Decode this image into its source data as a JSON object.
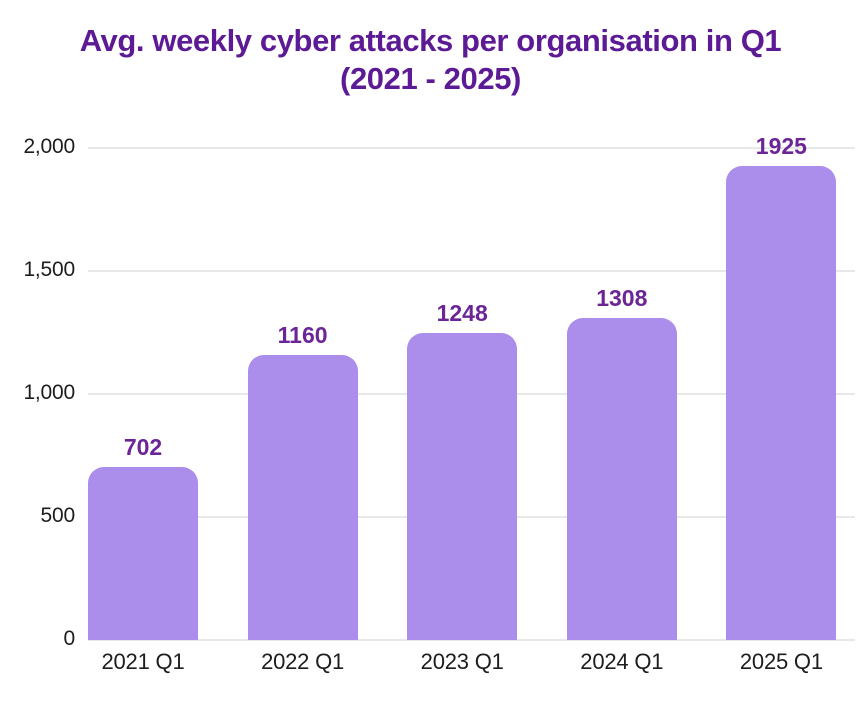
{
  "header": {
    "title_line1": "Avg. weekly cyber attacks per organisation in Q1",
    "title_line2": "(2021 - 2025)"
  },
  "chart_data": {
    "type": "bar",
    "title": "Avg. weekly cyber attacks per organisation in Q1 (2021 - 2025)",
    "categories": [
      "2021 Q1",
      "2022 Q1",
      "2023 Q1",
      "2024 Q1",
      "2025 Q1"
    ],
    "values": [
      702,
      1160,
      1248,
      1308,
      1925
    ],
    "value_labels": [
      "702",
      "1160",
      "1248",
      "1308",
      "1925"
    ],
    "y_ticks": [
      {
        "value": 0,
        "label": "0"
      },
      {
        "value": 500,
        "label": "500"
      },
      {
        "value": 1000,
        "label": "1,000"
      },
      {
        "value": 1500,
        "label": "1,500"
      },
      {
        "value": 2000,
        "label": "2,000"
      }
    ],
    "ylim": [
      0,
      2000
    ],
    "xlabel": "",
    "ylabel": "",
    "grid": true,
    "legend": "none",
    "colors": {
      "background": "#ffffff",
      "bar": "#ab8dec",
      "title": "#5c1a94",
      "value_label": "#6c2596",
      "axis_text": "#1d1d1d",
      "gridline": "#e8e8e8"
    }
  }
}
